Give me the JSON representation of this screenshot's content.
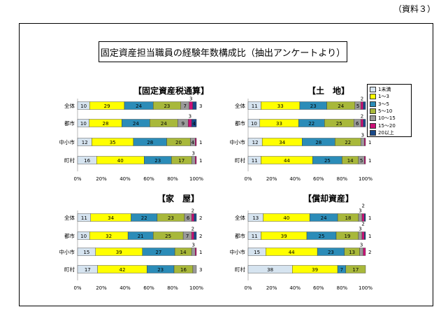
{
  "page": {
    "doc_label": "（資料３）",
    "title": "固定資産担当職員の経験年数構成比（抽出アンケートより）"
  },
  "legend": [
    {
      "label": "1未満",
      "color": "#d6e4f0"
    },
    {
      "label": "1～3",
      "color": "#ffff00"
    },
    {
      "label": "3～5",
      "color": "#2b8cb8"
    },
    {
      "label": "5～10",
      "color": "#a8b83a"
    },
    {
      "label": "10～15",
      "color": "#9a9a9a"
    },
    {
      "label": "15～20",
      "color": "#cc1177"
    },
    {
      "label": "20以上",
      "color": "#1a4a8a"
    }
  ],
  "chart_data": [
    {
      "type": "bar",
      "title": "【固定資産税通算】",
      "categories": [
        "全体",
        "都市",
        "中小市",
        "町村"
      ],
      "xlim": [
        0,
        100
      ],
      "xticks": [
        "0%",
        "20%",
        "40%",
        "60%",
        "80%",
        "100%"
      ],
      "series": [
        {
          "name": "1未満",
          "values": [
            10,
            10,
            12,
            16
          ]
        },
        {
          "name": "1～3",
          "values": [
            29,
            28,
            35,
            40
          ]
        },
        {
          "name": "3～5",
          "values": [
            24,
            24,
            28,
            23
          ]
        },
        {
          "name": "5～10",
          "values": [
            23,
            24,
            20,
            17
          ]
        },
        {
          "name": "10～15",
          "values": [
            7,
            9,
            4,
            3
          ]
        },
        {
          "name": "15～20",
          "values": [
            3,
            3,
            1,
            1
          ]
        },
        {
          "name": "20以上",
          "values": [
            3,
            4,
            0,
            0
          ]
        }
      ]
    },
    {
      "type": "bar",
      "title": "【土　地】",
      "categories": [
        "全体",
        "都市",
        "中小市",
        "町村"
      ],
      "xlim": [
        0,
        100
      ],
      "xticks": [
        "0%",
        "20%",
        "40%",
        "60%",
        "80%",
        "100%"
      ],
      "series": [
        {
          "name": "1未満",
          "values": [
            11,
            10,
            12,
            11
          ]
        },
        {
          "name": "1～3",
          "values": [
            33,
            33,
            34,
            44
          ]
        },
        {
          "name": "3～5",
          "values": [
            23,
            22,
            28,
            25
          ]
        },
        {
          "name": "5～10",
          "values": [
            24,
            25,
            22,
            14
          ]
        },
        {
          "name": "10～15",
          "values": [
            5,
            6,
            3,
            5
          ]
        },
        {
          "name": "15～20",
          "values": [
            2,
            2,
            1,
            1
          ]
        },
        {
          "name": "20以上",
          "values": [
            2,
            2,
            0,
            0
          ]
        }
      ]
    },
    {
      "type": "bar",
      "title": "【家　屋】",
      "categories": [
        "全体",
        "都市",
        "中小市",
        "町村"
      ],
      "xlim": [
        0,
        100
      ],
      "xticks": [
        "0%",
        "20%",
        "40%",
        "60%",
        "80%",
        "100%"
      ],
      "series": [
        {
          "name": "1未満",
          "values": [
            11,
            10,
            15,
            17
          ]
        },
        {
          "name": "1～3",
          "values": [
            34,
            32,
            39,
            42
          ]
        },
        {
          "name": "3～5",
          "values": [
            22,
            21,
            27,
            23
          ]
        },
        {
          "name": "5～10",
          "values": [
            23,
            25,
            14,
            16
          ]
        },
        {
          "name": "10～15",
          "values": [
            6,
            7,
            3,
            3
          ]
        },
        {
          "name": "15～20",
          "values": [
            2,
            2,
            1,
            0
          ]
        },
        {
          "name": "20以上",
          "values": [
            2,
            2,
            0,
            0
          ]
        }
      ]
    },
    {
      "type": "bar",
      "title": "【償却資産】",
      "categories": [
        "全体",
        "都市",
        "中小市",
        "町村"
      ],
      "xlim": [
        0,
        100
      ],
      "xticks": [
        "0%",
        "20%",
        "40%",
        "60%",
        "80%",
        "100%"
      ],
      "series": [
        {
          "name": "1未満",
          "values": [
            13,
            11,
            15,
            38
          ]
        },
        {
          "name": "1～3",
          "values": [
            40,
            39,
            44,
            39
          ]
        },
        {
          "name": "3～5",
          "values": [
            24,
            25,
            23,
            7
          ]
        },
        {
          "name": "5～10",
          "values": [
            18,
            19,
            13,
            17
          ]
        },
        {
          "name": "10～15",
          "values": [
            3,
            3,
            3,
            0
          ]
        },
        {
          "name": "15～20",
          "values": [
            2,
            2,
            2,
            0
          ]
        },
        {
          "name": "20以上",
          "values": [
            1,
            1,
            0,
            0
          ]
        }
      ]
    }
  ]
}
